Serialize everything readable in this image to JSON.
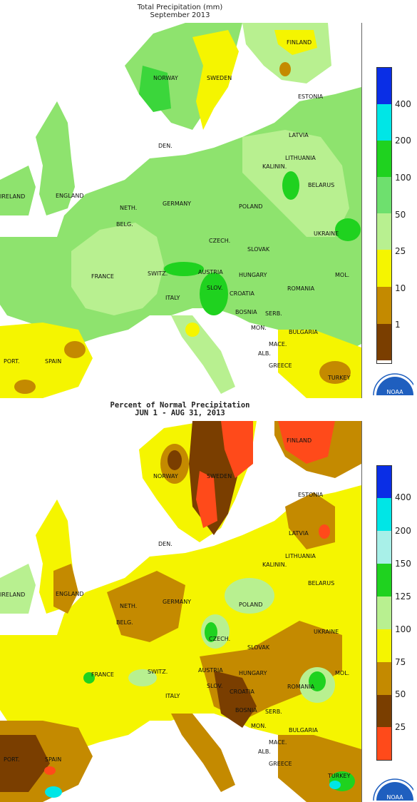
{
  "panels": [
    {
      "title_line1": "Total Precipitation (mm)",
      "title_line2": "September 2013",
      "legend_labels": [
        "400",
        "200",
        "100",
        "50",
        "25",
        "10",
        "1"
      ],
      "legend_colors": [
        "#0a2ee6",
        "#00e6e6",
        "#a8f0e8",
        "#1fd21f",
        "#6ee06e",
        "#b8f090",
        "#f5f500",
        "#c48a00",
        "#7a3e00"
      ],
      "countries": [
        "FINLAND",
        "NORWAY",
        "SWEDEN",
        "ESTONIA",
        "LATVIA",
        "DEN.",
        "LITHUANIA",
        "BELARUS",
        "IRELAND",
        "ENGLAND",
        "NETH.",
        "GERMANY",
        "POLAND",
        "BELG.",
        "UKRAINE",
        "CZECH.",
        "SLOVAK",
        "FRANCE",
        "SWITZ.",
        "AUSTRIA",
        "HUNGARY",
        "MOL.",
        "SLOV.",
        "CROATIA",
        "ROMANIA",
        "ITALY",
        "BOSNIA",
        "SERB.",
        "MON.",
        "BULGARIA",
        "MACE.",
        "PORT.",
        "SPAIN",
        "ALB.",
        "GREECE",
        "TURKEY",
        "KALININ."
      ],
      "logo_text": "NOAA"
    },
    {
      "title_line1": "Percent of Normal Precipitation",
      "title_line2": "JUN  1 - AUG 31, 2013",
      "legend_labels": [
        "400",
        "200",
        "150",
        "125",
        "100",
        "75",
        "50",
        "25"
      ],
      "legend_colors": [
        "#0a2ee6",
        "#00e6e6",
        "#a8f0e8",
        "#1fd21f",
        "#b8f090",
        "#f5f500",
        "#c48a00",
        "#7a3e00",
        "#ff4a1a"
      ],
      "countries": [
        "FINLAND",
        "NORWAY",
        "SWEDEN",
        "ESTONIA",
        "LATVIA",
        "DEN.",
        "LITHUANIA",
        "BELARUS",
        "IRELAND",
        "ENGLAND",
        "NETH.",
        "GERMANY",
        "POLAND",
        "BELG.",
        "UKRAINE",
        "CZECH.",
        "SLOVAK",
        "FRANCE",
        "SWITZ.",
        "AUSTRIA",
        "HUNGARY",
        "MOL.",
        "SLOV.",
        "CROATIA",
        "ROMANIA",
        "ITALY",
        "BOSNIA",
        "SERB.",
        "MON.",
        "BULGARIA",
        "MACE.",
        "PORT.",
        "SPAIN",
        "ALB.",
        "GREECE",
        "TURKEY",
        "KALININ."
      ],
      "logo_text": "NOAA"
    }
  ]
}
